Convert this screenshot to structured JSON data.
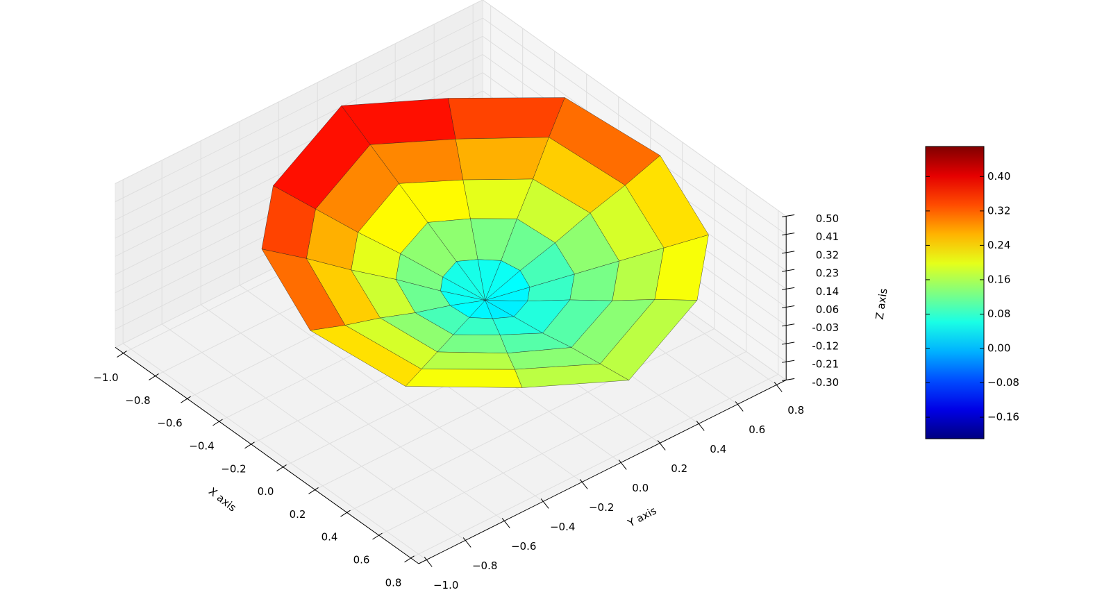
{
  "chart_data": {
    "type": "surface3d",
    "x_label": "X axis",
    "y_label": "Y axis",
    "z_label": "Z axis",
    "xlim": [
      -1.05,
      0.85
    ],
    "ylim": [
      -1.04,
      0.85
    ],
    "zlim": [
      -0.3,
      0.5
    ],
    "xticks": [
      {
        "value": -1.0,
        "label": "−1.0"
      },
      {
        "value": -0.8,
        "label": "−0.8"
      },
      {
        "value": -0.6,
        "label": "−0.6"
      },
      {
        "value": -0.4,
        "label": "−0.4"
      },
      {
        "value": -0.2,
        "label": "−0.2"
      },
      {
        "value": 0,
        "label": "0.0"
      },
      {
        "value": 0.2,
        "label": "0.2"
      },
      {
        "value": 0.4,
        "label": "0.4"
      },
      {
        "value": 0.6,
        "label": "0.6"
      },
      {
        "value": 0.8,
        "label": "0.8"
      }
    ],
    "yticks": [
      {
        "value": -1.0,
        "label": "−1.0"
      },
      {
        "value": -0.8,
        "label": "−0.8"
      },
      {
        "value": -0.6,
        "label": "−0.6"
      },
      {
        "value": -0.4,
        "label": "−0.4"
      },
      {
        "value": -0.2,
        "label": "−0.2"
      },
      {
        "value": 0,
        "label": "0.0"
      },
      {
        "value": 0.2,
        "label": "0.2"
      },
      {
        "value": 0.4,
        "label": "0.4"
      },
      {
        "value": 0.6,
        "label": "0.6"
      },
      {
        "value": 0.8,
        "label": "0.8"
      }
    ],
    "zticks": [
      {
        "value": -0.3,
        "label": "-0.30"
      },
      {
        "value": -0.2111,
        "label": "-0.21"
      },
      {
        "value": -0.1222,
        "label": "-0.12"
      },
      {
        "value": -0.0333,
        "label": "-0.03"
      },
      {
        "value": 0.0556,
        "label": "0.06"
      },
      {
        "value": 0.1444,
        "label": "0.14"
      },
      {
        "value": 0.2333,
        "label": "0.23"
      },
      {
        "value": 0.3222,
        "label": "0.32"
      },
      {
        "value": 0.4111,
        "label": "0.41"
      },
      {
        "value": 0.5,
        "label": "0.50"
      }
    ],
    "grid": true,
    "cmap": "jet",
    "surface": {
      "r": [
        0,
        0.18,
        0.36,
        0.54,
        0.72,
        0.9
      ],
      "theta": [
        0,
        30,
        60,
        90,
        120,
        150,
        180,
        210,
        240,
        270,
        300,
        330
      ],
      "z": [
        [
          0.02,
          0.02,
          0.02,
          0.02,
          0.02,
          0.02,
          0.02,
          0.02,
          0.02,
          0.02,
          0.02,
          0.02
        ],
        [
          0.04,
          0.06,
          0.06,
          0.08,
          0.09,
          0.09,
          0.11,
          0.09,
          0.09,
          0.08,
          0.06,
          0.06
        ],
        [
          0.06,
          0.11,
          0.1,
          0.13,
          0.17,
          0.16,
          0.2,
          0.16,
          0.17,
          0.13,
          0.1,
          0.11
        ],
        [
          0.09,
          0.15,
          0.14,
          0.19,
          0.24,
          0.22,
          0.29,
          0.22,
          0.24,
          0.19,
          0.14,
          0.15
        ],
        [
          0.11,
          0.2,
          0.18,
          0.24,
          0.32,
          0.29,
          0.38,
          0.29,
          0.32,
          0.24,
          0.18,
          0.2
        ],
        [
          0.13,
          0.24,
          0.22,
          0.3,
          0.39,
          0.36,
          0.47,
          0.36,
          0.39,
          0.3,
          0.22,
          0.24
        ]
      ]
    },
    "colorbar": {
      "lim": [
        -0.21,
        0.47
      ],
      "ticks": [
        {
          "value": -0.16,
          "label": "−0.16"
        },
        {
          "value": -0.08,
          "label": "−0.08"
        },
        {
          "value": 0,
          "label": "0.00"
        },
        {
          "value": 0.08,
          "label": "0.08"
        },
        {
          "value": 0.16,
          "label": "0.16"
        },
        {
          "value": 0.24,
          "label": "0.24"
        },
        {
          "value": 0.32,
          "label": "0.32"
        },
        {
          "value": 0.4,
          "label": "0.40"
        }
      ]
    }
  }
}
